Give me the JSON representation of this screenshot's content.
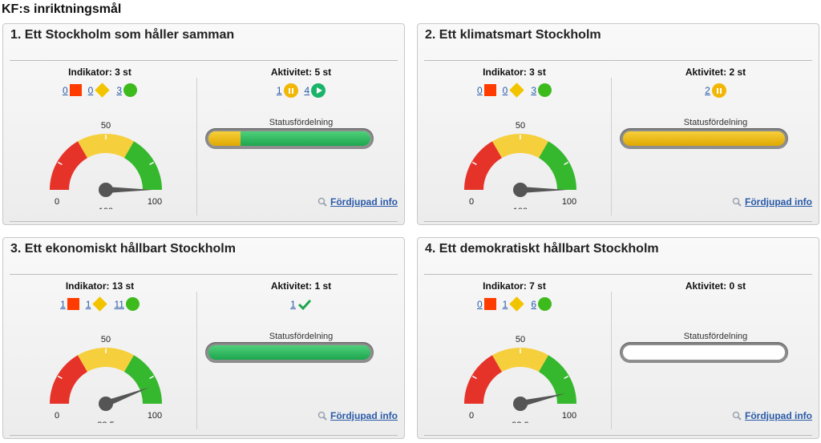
{
  "page_title": "KF:s inriktningsmål",
  "status_label": "Statusfördelning",
  "info_label": "Fördjupad info",
  "colors": {
    "red": "#ff3b00",
    "yellow": "#f2c400",
    "green": "#3dbb1c",
    "link": "#2a5aa8"
  },
  "panels": [
    {
      "title": "1. Ett Stockholm som håller samman",
      "indicator_heading": "Indikator: 3 st",
      "activity_heading": "Aktivitet: 5 st",
      "ind_red": "0",
      "ind_yellow": "0",
      "ind_green": "3",
      "activities": [
        {
          "count": "1",
          "icon": "pause-icon"
        },
        {
          "count": "4",
          "icon": "play-icon"
        }
      ],
      "gauge": {
        "min": "0",
        "mid": "50",
        "max": "100",
        "value": 100,
        "value_text": "100"
      },
      "status": [
        {
          "color": "yellow",
          "fraction": 0.2
        },
        {
          "color": "green",
          "fraction": 0.8
        }
      ]
    },
    {
      "title": "2. Ett klimatsmart Stockholm",
      "indicator_heading": "Indikator: 3 st",
      "activity_heading": "Aktivitet: 2 st",
      "ind_red": "0",
      "ind_yellow": "0",
      "ind_green": "3",
      "activities": [
        {
          "count": "2",
          "icon": "pause-icon"
        }
      ],
      "gauge": {
        "min": "0",
        "mid": "50",
        "max": "100",
        "value": 100,
        "value_text": "100"
      },
      "status": [
        {
          "color": "yellow",
          "fraction": 1.0
        }
      ]
    },
    {
      "title": "3. Ett ekonomiskt hållbart Stockholm",
      "indicator_heading": "Indikator: 13 st",
      "activity_heading": "Aktivitet: 1 st",
      "ind_red": "1",
      "ind_yellow": "1",
      "ind_green": "11",
      "activities": [
        {
          "count": "1",
          "icon": "check-icon"
        }
      ],
      "gauge": {
        "min": "0",
        "mid": "50",
        "max": "100",
        "value": 88.5,
        "value_text": "88,5"
      },
      "status": [
        {
          "color": "green",
          "fraction": 1.0
        }
      ]
    },
    {
      "title": "4. Ett demokratiskt hållbart Stockholm",
      "indicator_heading": "Indikator: 7 st",
      "activity_heading": "Aktivitet: 0 st",
      "ind_red": "0",
      "ind_yellow": "1",
      "ind_green": "6",
      "activities": [],
      "gauge": {
        "min": "0",
        "mid": "50",
        "max": "100",
        "value": 92.9,
        "value_text": "92,9"
      },
      "status": []
    }
  ]
}
